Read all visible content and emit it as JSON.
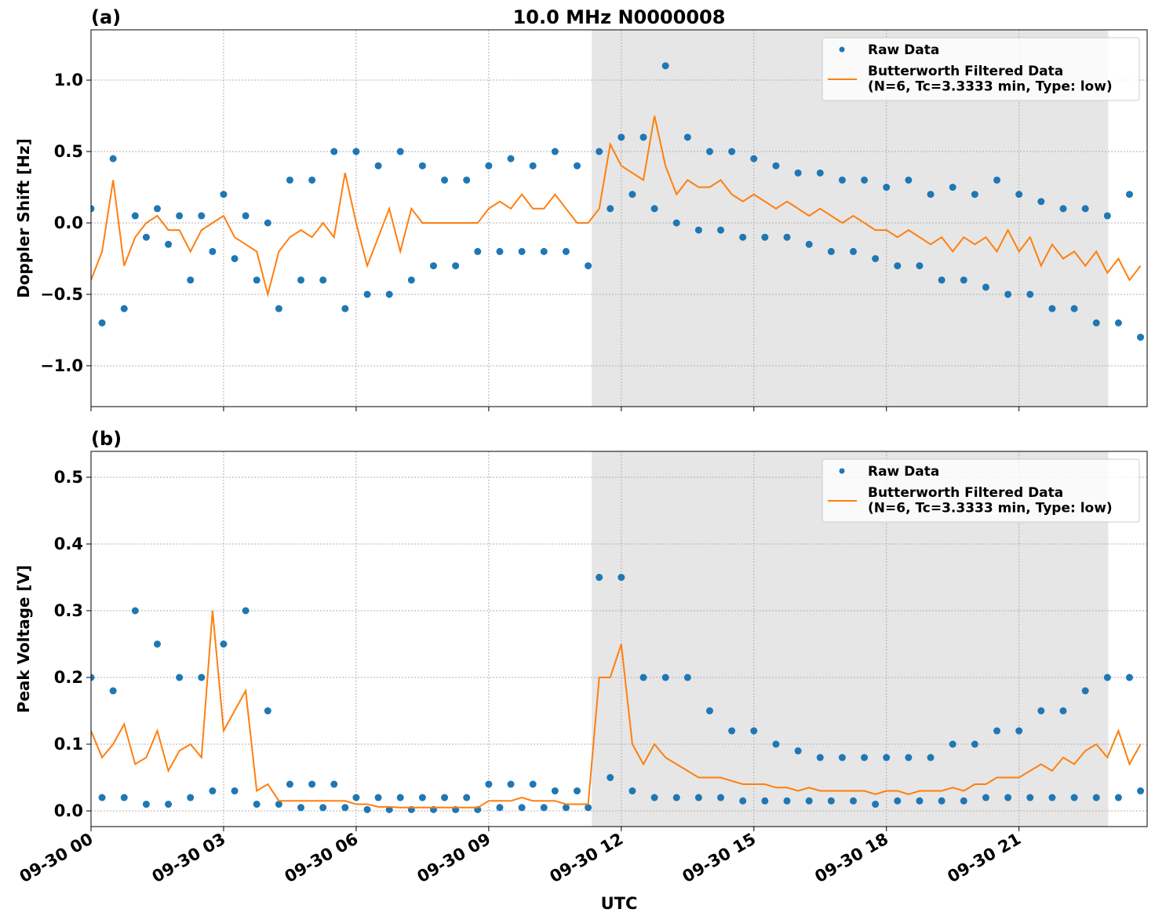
{
  "chart_data": [
    {
      "type": "line",
      "panel_label": "(a)",
      "title": "10.0 MHz N0000008",
      "ylabel": "Doppler Shift [Hz]",
      "xlim": [
        0,
        23.9
      ],
      "ylim": [
        -1.286,
        1.352
      ],
      "xticks": [
        0,
        3,
        6,
        9,
        12,
        15,
        18,
        21
      ],
      "yticks": [
        {
          "value": -1,
          "label": "−1.0"
        },
        {
          "value": -0.5,
          "label": "−0.5"
        },
        {
          "value": 0,
          "label": "0.0"
        },
        0.5,
        {
          "value": 1,
          "label": "1.0"
        }
      ],
      "grid": true,
      "legend": "upper right",
      "shaded_span": [
        11.33,
        23.02
      ],
      "shade_color": "#e6e6e6",
      "x": [
        0,
        0.25,
        0.5,
        0.75,
        1,
        1.25,
        1.5,
        1.75,
        2,
        2.25,
        2.5,
        2.75,
        3,
        3.25,
        3.5,
        3.75,
        4,
        4.25,
        4.5,
        4.75,
        5,
        5.25,
        5.5,
        5.75,
        6,
        6.25,
        6.5,
        6.75,
        7,
        7.25,
        7.5,
        7.75,
        8,
        8.25,
        8.5,
        8.75,
        9,
        9.25,
        9.5,
        9.75,
        10,
        10.25,
        10.5,
        10.75,
        11,
        11.25,
        11.5,
        11.75,
        12,
        12.25,
        12.5,
        12.75,
        13,
        13.25,
        13.5,
        13.75,
        14,
        14.25,
        14.5,
        14.75,
        15,
        15.25,
        15.5,
        15.75,
        16,
        16.25,
        16.5,
        16.75,
        17,
        17.25,
        17.5,
        17.75,
        18,
        18.25,
        18.5,
        18.75,
        19,
        19.25,
        19.5,
        19.75,
        20,
        20.25,
        20.5,
        20.75,
        21,
        21.25,
        21.5,
        21.75,
        22,
        22.25,
        22.5,
        22.75,
        23,
        23.25,
        23.5,
        23.75
      ],
      "series": [
        {
          "name": "Raw Data",
          "type": "scatter",
          "color": "#1f77b4",
          "values": [
            0.1,
            -0.7,
            0.45,
            -0.6,
            0.05,
            -0.1,
            0.1,
            -0.15,
            0.05,
            -0.4,
            0.05,
            -0.2,
            0.2,
            -0.25,
            0.05,
            -0.4,
            0.0,
            -0.6,
            0.3,
            -0.4,
            0.3,
            -0.4,
            0.5,
            -0.6,
            0.5,
            -0.5,
            0.4,
            -0.5,
            0.5,
            -0.4,
            0.4,
            -0.3,
            0.3,
            -0.3,
            0.3,
            -0.2,
            0.4,
            -0.2,
            0.45,
            -0.2,
            0.4,
            -0.2,
            0.5,
            -0.2,
            0.4,
            -0.3,
            0.5,
            0.1,
            0.6,
            0.2,
            0.6,
            0.1,
            1.1,
            0.0,
            0.6,
            -0.05,
            0.5,
            -0.05,
            0.5,
            -0.1,
            0.45,
            -0.1,
            0.4,
            -0.1,
            0.35,
            -0.15,
            0.35,
            -0.2,
            0.3,
            -0.2,
            0.3,
            -0.25,
            0.25,
            -0.3,
            0.3,
            -0.3,
            0.2,
            -0.4,
            0.25,
            -0.4,
            0.2,
            -0.45,
            0.3,
            -0.5,
            0.2,
            -0.5,
            0.15,
            -0.6,
            0.1,
            -0.6,
            0.1,
            -0.7,
            0.05,
            -0.7,
            0.2,
            -0.8
          ]
        },
        {
          "name": "Butterworth Filtered Data\n(N=6, Tc=3.3333 min, Type: low)",
          "type": "line",
          "color": "#ff7f0e",
          "values": [
            -0.4,
            -0.2,
            0.3,
            -0.3,
            -0.1,
            0.0,
            0.05,
            -0.05,
            -0.05,
            -0.2,
            -0.05,
            0.0,
            0.05,
            -0.1,
            -0.15,
            -0.2,
            -0.5,
            -0.2,
            -0.1,
            -0.05,
            -0.1,
            0.0,
            -0.1,
            0.35,
            0.0,
            -0.3,
            -0.1,
            0.1,
            -0.2,
            0.1,
            0.0,
            0.0,
            0.0,
            0.0,
            0.0,
            0.0,
            0.1,
            0.15,
            0.1,
            0.2,
            0.1,
            0.1,
            0.2,
            0.1,
            0.0,
            0.0,
            0.1,
            0.55,
            0.4,
            0.35,
            0.3,
            0.75,
            0.4,
            0.2,
            0.3,
            0.25,
            0.25,
            0.3,
            0.2,
            0.15,
            0.2,
            0.15,
            0.1,
            0.15,
            0.1,
            0.05,
            0.1,
            0.05,
            0.0,
            0.05,
            0.0,
            -0.05,
            -0.05,
            -0.1,
            -0.05,
            -0.1,
            -0.15,
            -0.1,
            -0.2,
            -0.1,
            -0.15,
            -0.1,
            -0.2,
            -0.05,
            -0.2,
            -0.1,
            -0.3,
            -0.15,
            -0.25,
            -0.2,
            -0.3,
            -0.2,
            -0.35,
            -0.25,
            -0.4,
            -0.3
          ]
        }
      ]
    },
    {
      "type": "line",
      "panel_label": "(b)",
      "ylabel": "Peak Voltage [V]",
      "xlabel": "UTC",
      "xlim": [
        0,
        23.9
      ],
      "ylim": [
        -0.0235,
        0.5388
      ],
      "xticks": [
        {
          "value": 0,
          "label": "09-30 00"
        },
        {
          "value": 3,
          "label": "09-30 03"
        },
        {
          "value": 6,
          "label": "09-30 06"
        },
        {
          "value": 9,
          "label": "09-30 09"
        },
        {
          "value": 12,
          "label": "09-30 12"
        },
        {
          "value": 15,
          "label": "09-30 15"
        },
        {
          "value": 18,
          "label": "09-30 18"
        },
        {
          "value": 21,
          "label": "09-30 21"
        }
      ],
      "yticks": [
        {
          "value": 0,
          "label": "0.0"
        },
        0.1,
        0.2,
        0.3,
        0.4,
        0.5
      ],
      "grid": true,
      "legend": "upper right",
      "shaded_span": [
        11.33,
        23.02
      ],
      "shade_color": "#e6e6e6",
      "x": [
        0,
        0.25,
        0.5,
        0.75,
        1,
        1.25,
        1.5,
        1.75,
        2,
        2.25,
        2.5,
        2.75,
        3,
        3.25,
        3.5,
        3.75,
        4,
        4.25,
        4.5,
        4.75,
        5,
        5.25,
        5.5,
        5.75,
        6,
        6.25,
        6.5,
        6.75,
        7,
        7.25,
        7.5,
        7.75,
        8,
        8.25,
        8.5,
        8.75,
        9,
        9.25,
        9.5,
        9.75,
        10,
        10.25,
        10.5,
        10.75,
        11,
        11.25,
        11.5,
        11.75,
        12,
        12.25,
        12.5,
        12.75,
        13,
        13.25,
        13.5,
        13.75,
        14,
        14.25,
        14.5,
        14.75,
        15,
        15.25,
        15.5,
        15.75,
        16,
        16.25,
        16.5,
        16.75,
        17,
        17.25,
        17.5,
        17.75,
        18,
        18.25,
        18.5,
        18.75,
        19,
        19.25,
        19.5,
        19.75,
        20,
        20.25,
        20.5,
        20.75,
        21,
        21.25,
        21.5,
        21.75,
        22,
        22.25,
        22.5,
        22.75,
        23,
        23.25,
        23.5,
        23.75
      ],
      "series": [
        {
          "name": "Raw Data",
          "type": "scatter",
          "color": "#1f77b4",
          "values": [
            0.2,
            0.02,
            0.18,
            0.02,
            0.3,
            0.01,
            0.25,
            0.01,
            0.2,
            0.02,
            0.2,
            0.03,
            0.25,
            0.03,
            0.3,
            0.01,
            0.15,
            0.01,
            0.04,
            0.005,
            0.04,
            0.005,
            0.04,
            0.005,
            0.02,
            0.002,
            0.02,
            0.002,
            0.02,
            0.002,
            0.02,
            0.002,
            0.02,
            0.002,
            0.02,
            0.002,
            0.04,
            0.005,
            0.04,
            0.005,
            0.04,
            0.005,
            0.03,
            0.005,
            0.03,
            0.005,
            0.35,
            0.05,
            0.35,
            0.03,
            0.2,
            0.02,
            0.2,
            0.02,
            0.2,
            0.02,
            0.15,
            0.02,
            0.12,
            0.015,
            0.12,
            0.015,
            0.1,
            0.015,
            0.09,
            0.015,
            0.08,
            0.015,
            0.08,
            0.015,
            0.08,
            0.01,
            0.08,
            0.015,
            0.08,
            0.015,
            0.08,
            0.015,
            0.1,
            0.015,
            0.1,
            0.02,
            0.12,
            0.02,
            0.12,
            0.02,
            0.15,
            0.02,
            0.15,
            0.02,
            0.18,
            0.02,
            0.2,
            0.02,
            0.2,
            0.03
          ]
        },
        {
          "name": "Butterworth Filtered Data\n(N=6, Tc=3.3333 min, Type: low)",
          "type": "line",
          "color": "#ff7f0e",
          "values": [
            0.12,
            0.08,
            0.1,
            0.13,
            0.07,
            0.08,
            0.12,
            0.06,
            0.09,
            0.1,
            0.08,
            0.3,
            0.12,
            0.15,
            0.18,
            0.03,
            0.04,
            0.015,
            0.015,
            0.015,
            0.015,
            0.015,
            0.015,
            0.015,
            0.01,
            0.01,
            0.006,
            0.006,
            0.005,
            0.005,
            0.005,
            0.005,
            0.005,
            0.005,
            0.005,
            0.005,
            0.015,
            0.015,
            0.015,
            0.02,
            0.015,
            0.015,
            0.015,
            0.01,
            0.01,
            0.01,
            0.2,
            0.2,
            0.25,
            0.1,
            0.07,
            0.1,
            0.08,
            0.07,
            0.06,
            0.05,
            0.05,
            0.05,
            0.045,
            0.04,
            0.04,
            0.04,
            0.035,
            0.035,
            0.03,
            0.035,
            0.03,
            0.03,
            0.03,
            0.03,
            0.03,
            0.025,
            0.03,
            0.03,
            0.025,
            0.03,
            0.03,
            0.03,
            0.035,
            0.03,
            0.04,
            0.04,
            0.05,
            0.05,
            0.05,
            0.06,
            0.07,
            0.06,
            0.08,
            0.07,
            0.09,
            0.1,
            0.08,
            0.12,
            0.07,
            0.1
          ]
        }
      ]
    }
  ]
}
